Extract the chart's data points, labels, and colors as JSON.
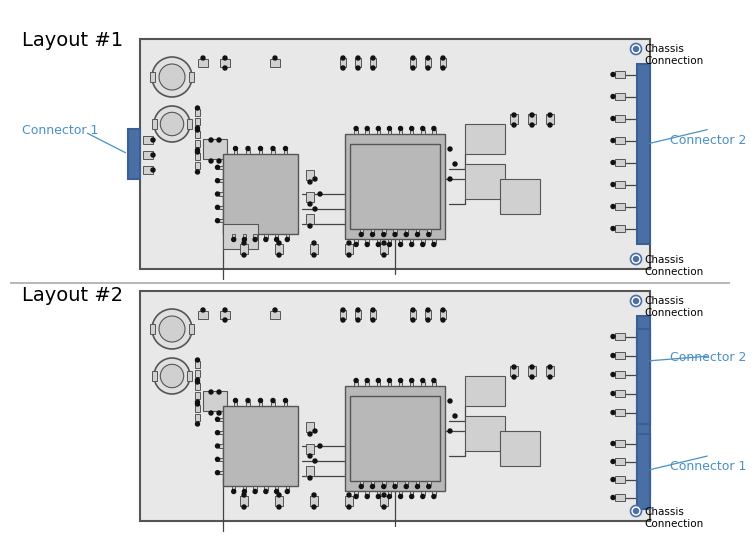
{
  "bg_color": "#ffffff",
  "board_fill": "#e8e8e8",
  "board_edge": "#555555",
  "chip_fill_dark": "#b8b8b8",
  "chip_fill_light": "#d0d0d0",
  "chip_edge": "#555555",
  "connector_fill": "#4a6fa5",
  "connector_edge": "#3a5f95",
  "cap_fill": "#d0d0d0",
  "cap_edge": "#555555",
  "chassis_fill": "#ffffff",
  "chassis_edge": "#4a6fa5",
  "chassis_dot_fill": "#4a6fa5",
  "label_color": "#4a90c4",
  "black": "#111111",
  "divider_color": "#aaaaaa",
  "trace_color": "#444444",
  "layout1_title": "Layout #1",
  "layout2_title": "Layout #2",
  "conn1_label": "Connector 1",
  "conn2_label": "Connector 2",
  "chassis_label": "Chassis\nConnection",
  "title_fontsize": 14,
  "label_fontsize": 9,
  "small_fontsize": 7.5
}
